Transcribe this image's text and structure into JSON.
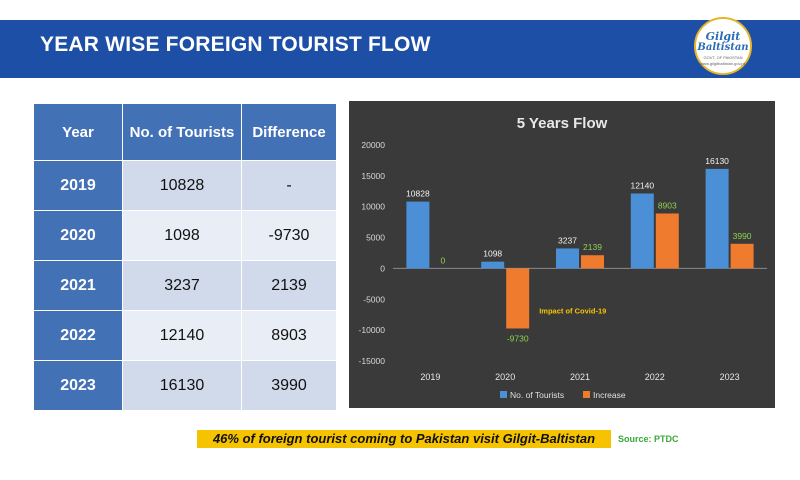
{
  "header": {
    "title": "YEAR WISE FOREIGN TOURIST FLOW",
    "logo_line1": "Gilgit",
    "logo_line2": "Baltistan",
    "logo_small": "GOVT. OF PAKISTAN",
    "logo_small2": "www.gilgitbaltistan.gov.pk"
  },
  "table": {
    "headers": [
      "Year",
      "No. of Tourists",
      "Difference"
    ],
    "rows": [
      [
        "2019",
        "10828",
        "-"
      ],
      [
        "2020",
        "1098",
        "-9730"
      ],
      [
        "2021",
        "3237",
        "2139"
      ],
      [
        "2022",
        "12140",
        "8903"
      ],
      [
        "2023",
        "16130",
        "3990"
      ]
    ]
  },
  "chart_data": {
    "type": "bar",
    "title": "5 Years Flow",
    "categories": [
      "2019",
      "2020",
      "2021",
      "2022",
      "2023"
    ],
    "series": [
      {
        "name": "No. of Tourists",
        "values": [
          10828,
          1098,
          3237,
          12140,
          16130
        ],
        "color": "#4b8fd6"
      },
      {
        "name": "Increase",
        "values": [
          0,
          -9730,
          2139,
          8903,
          3990
        ],
        "color": "#ef7b2f"
      }
    ],
    "ylim": [
      -15000,
      20000
    ],
    "yticks": [
      20000,
      15000,
      10000,
      5000,
      0,
      -5000,
      -10000,
      -15000
    ],
    "annotation": "Impact of Covid-19",
    "legend_position": "bottom",
    "background": "#3a3a3a"
  },
  "footer": {
    "note": "46% of foreign tourist coming to Pakistan visit Gilgit-Baltistan",
    "source": "Source: PTDC"
  }
}
